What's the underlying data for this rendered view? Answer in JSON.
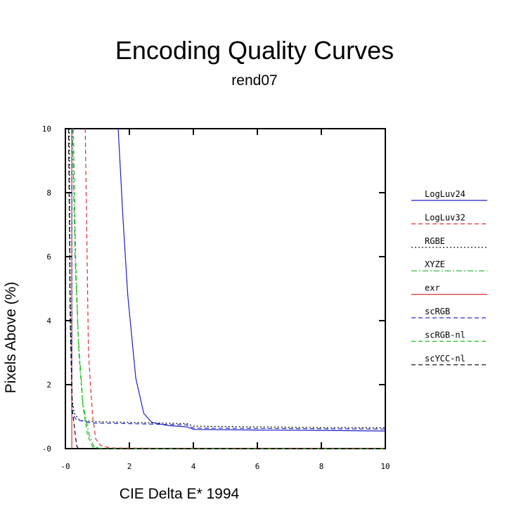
{
  "chart_data": {
    "type": "line",
    "title": "Encoding Quality Curves",
    "subtitle": "rend07",
    "xlabel": "CIE Delta E* 1994",
    "ylabel": "Pixels Above (%)",
    "xlim": [
      0,
      10
    ],
    "ylim": [
      0,
      10
    ],
    "xticks": [
      0,
      2,
      4,
      6,
      8,
      10
    ],
    "yticks": [
      0,
      2,
      4,
      6,
      8,
      10
    ],
    "xtick_labels": [
      "-0",
      "2",
      "4",
      "6",
      "8",
      "10"
    ],
    "ytick_labels": [
      "-0",
      "2",
      "4",
      "6",
      "8",
      "10"
    ],
    "grid": false,
    "legend_position": "right",
    "series": [
      {
        "name": "LogLuv24",
        "color": "#1f1fc8",
        "dash": "solid",
        "points": [
          [
            1.65,
            10
          ],
          [
            1.8,
            7.2
          ],
          [
            1.95,
            4.8
          ],
          [
            2.2,
            2.2
          ],
          [
            2.45,
            1.1
          ],
          [
            2.7,
            0.82
          ],
          [
            3.2,
            0.72
          ],
          [
            3.8,
            0.68
          ],
          [
            4.0,
            0.6
          ],
          [
            6,
            0.58
          ],
          [
            8,
            0.57
          ],
          [
            10,
            0.55
          ]
        ]
      },
      {
        "name": "LogLuv32",
        "color": "#e03030",
        "dash": "dashed",
        "points": [
          [
            0.62,
            10
          ],
          [
            0.68,
            6
          ],
          [
            0.72,
            3.0
          ],
          [
            0.85,
            1.0
          ],
          [
            0.95,
            0.3
          ],
          [
            1.1,
            0.1
          ],
          [
            1.4,
            0.02
          ],
          [
            3,
            0.01
          ],
          [
            10,
            0.01
          ]
        ]
      },
      {
        "name": "RGBE",
        "color": "#000000",
        "dash": "dotted",
        "points": [
          [
            0.12,
            10
          ],
          [
            0.15,
            5.0
          ],
          [
            0.2,
            1.6
          ],
          [
            0.28,
            1.1
          ],
          [
            0.45,
            0.88
          ],
          [
            1.0,
            0.84
          ],
          [
            2.0,
            0.82
          ],
          [
            3.8,
            0.78
          ],
          [
            4.0,
            0.7
          ],
          [
            6,
            0.68
          ],
          [
            8,
            0.66
          ],
          [
            10,
            0.65
          ]
        ]
      },
      {
        "name": "XYZE",
        "color": "#22b022",
        "dash": "dashdot",
        "points": [
          [
            0.22,
            10
          ],
          [
            0.3,
            6.0
          ],
          [
            0.4,
            3.5
          ],
          [
            0.55,
            1.4
          ],
          [
            0.75,
            0.4
          ],
          [
            0.9,
            0.05
          ],
          [
            1.2,
            0.0
          ],
          [
            10,
            0.0
          ]
        ]
      },
      {
        "name": "exr",
        "color": "#e03030",
        "dash": "solid",
        "points": [
          [
            0.2,
            10
          ],
          [
            0.2,
            0
          ]
        ]
      },
      {
        "name": "scRGB",
        "color": "#2030d0",
        "dash": "dashed",
        "points": [
          [
            0.2,
            10
          ],
          [
            0.2,
            1.1
          ],
          [
            0.35,
            0.9
          ],
          [
            0.8,
            0.8
          ],
          [
            2.0,
            0.78
          ],
          [
            3.8,
            0.74
          ],
          [
            4.0,
            0.64
          ],
          [
            6,
            0.63
          ],
          [
            8,
            0.62
          ],
          [
            10,
            0.61
          ]
        ]
      },
      {
        "name": "scRGB-nl",
        "color": "#22c022",
        "dash": "dashed",
        "points": [
          [
            0.25,
            10
          ],
          [
            0.32,
            6.0
          ],
          [
            0.42,
            3.0
          ],
          [
            0.55,
            1.3
          ],
          [
            0.7,
            0.4
          ],
          [
            0.85,
            0.05
          ],
          [
            1.1,
            0.0
          ],
          [
            10,
            0.0
          ]
        ]
      },
      {
        "name": "scYCC-nl",
        "color": "#000000",
        "dash": "dashed",
        "points": [
          [
            0.1,
            10
          ],
          [
            0.15,
            4.0
          ],
          [
            0.22,
            1.2
          ],
          [
            0.3,
            0.5
          ],
          [
            0.35,
            0.1
          ],
          [
            0.4,
            0.0
          ],
          [
            10,
            0.0
          ]
        ]
      }
    ]
  }
}
